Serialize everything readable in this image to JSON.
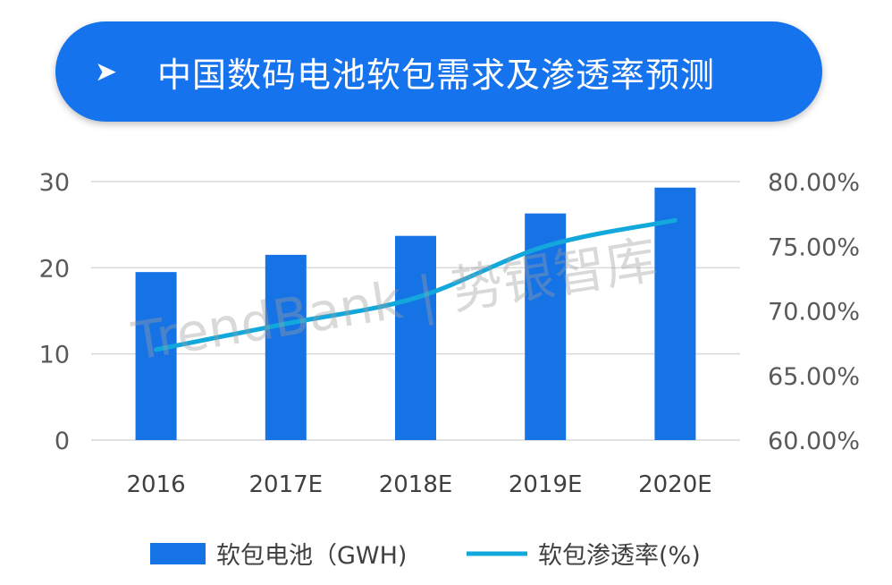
{
  "header": {
    "arrow": "➤",
    "title": "中国数码电池软包需求及渗透率预测"
  },
  "watermark": "TrendBank | 势银智库",
  "colors": {
    "banner": "#1673ee",
    "bar": "#1673e6",
    "line": "#13a8dc"
  },
  "chart_data": {
    "type": "bar",
    "categories": [
      "2016",
      "2017E",
      "2018E",
      "2019E",
      "2020E"
    ],
    "series": [
      {
        "name": "软包电池（GWH)",
        "type": "bar",
        "axis": "left",
        "values": [
          19.5,
          21.5,
          23.7,
          26.3,
          29.3
        ]
      },
      {
        "name": "软包渗透率(%)",
        "type": "line",
        "axis": "right",
        "values": [
          67.0,
          69.0,
          71.0,
          75.0,
          77.0
        ]
      }
    ],
    "y_left": {
      "ylim": [
        0,
        30
      ],
      "ticks": [
        "0",
        "10",
        "20",
        "30"
      ]
    },
    "y_right": {
      "ylim": [
        60,
        80
      ],
      "ticks": [
        "60.00%",
        "65.00%",
        "70.00%",
        "75.00%",
        "80.00%"
      ]
    },
    "grid": true,
    "legend": "bottom"
  }
}
